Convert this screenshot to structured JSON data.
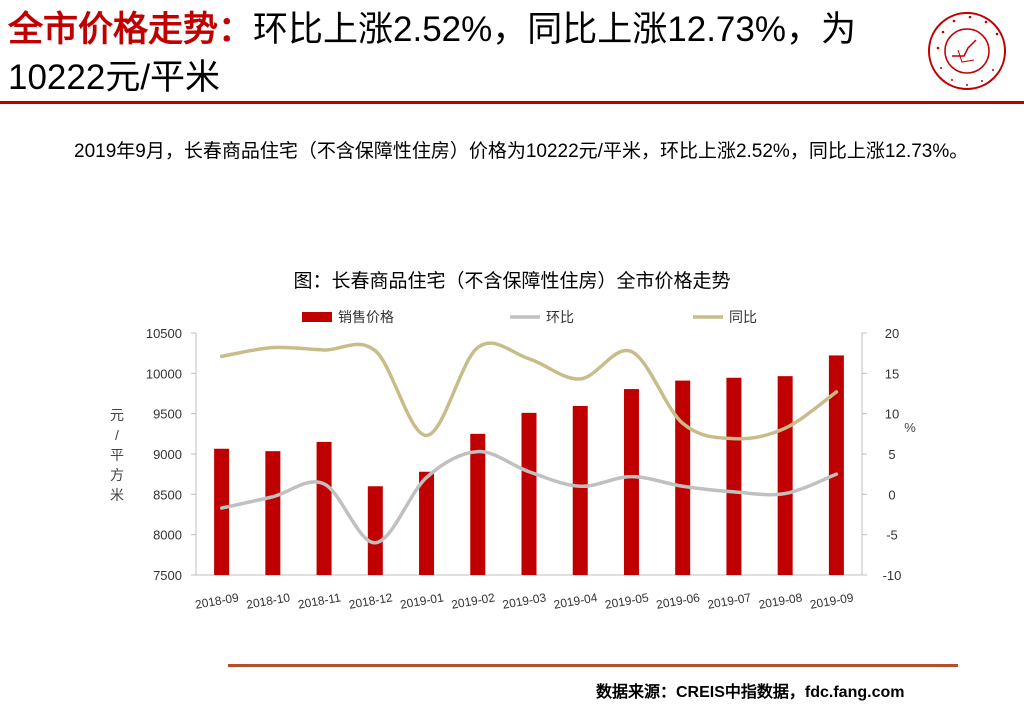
{
  "header": {
    "title_lead": "全市价格走势：",
    "title_rest": "环比上涨2.52%，同比上涨12.73%，为10222元/平米",
    "accent_color": "#c00000",
    "logo_icon": "china-index-academy-seal-icon"
  },
  "summary": {
    "text": "2019年9月，长春商品住宅（不含保障性住房）价格为10222元/平米，环比上涨2.52%，同比上涨12.73%。"
  },
  "chart_title": "图：长春商品住宅（不含保障性住房）全市价格走势",
  "chart_data": {
    "type": "bar+line",
    "title": "图：长春商品住宅（不含保障性住房）全市价格走势",
    "categories": [
      "2018-09",
      "2018-10",
      "2018-11",
      "2018-12",
      "2019-01",
      "2019-02",
      "2019-03",
      "2019-04",
      "2019-05",
      "2019-06",
      "2019-07",
      "2019-08",
      "2019-09"
    ],
    "series": [
      {
        "name": "销售价格",
        "type": "bar",
        "axis": "left",
        "color": "#c00000",
        "values": [
          9065,
          9035,
          9150,
          8600,
          8780,
          9250,
          9510,
          9595,
          9805,
          9910,
          9945,
          9965,
          10222
        ]
      },
      {
        "name": "环比",
        "type": "line",
        "axis": "right",
        "color": "#c0c0c0",
        "values": [
          -1.7,
          -0.3,
          1.3,
          -6.0,
          2.1,
          5.3,
          2.8,
          1.0,
          2.2,
          1.0,
          0.3,
          0.1,
          2.5
        ]
      },
      {
        "name": "同比",
        "type": "line",
        "axis": "right",
        "color": "#c8bd8a",
        "values": [
          17.1,
          18.2,
          17.9,
          17.8,
          7.3,
          18.2,
          16.8,
          14.3,
          17.7,
          8.8,
          6.9,
          8.2,
          12.7
        ]
      }
    ],
    "ylabel_left": "元/平方米",
    "ylabel_right": "%",
    "ylim_left": [
      7500,
      10500
    ],
    "ylim_right": [
      -10,
      20
    ],
    "yticks_left": [
      7500,
      8000,
      8500,
      9000,
      9500,
      10000,
      10500
    ],
    "yticks_right": [
      -10,
      -5,
      0,
      5,
      10,
      15,
      20
    ],
    "legend_position": "top"
  },
  "footer": {
    "source": "数据来源：CREIS中指数据，fdc.fang.com"
  }
}
